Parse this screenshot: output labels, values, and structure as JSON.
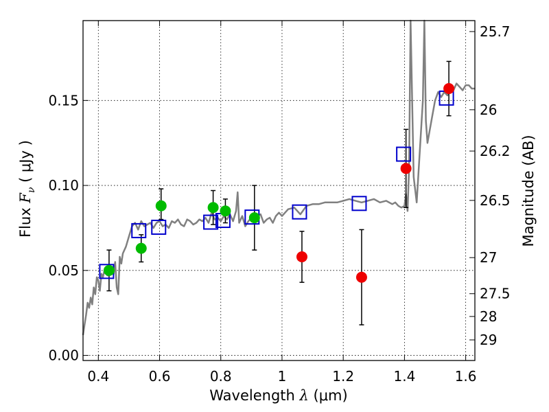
{
  "chart_data": {
    "type": "scatter",
    "xlabel_text": "Wavelength  ",
    "xlabel_symbol": "λ",
    "xlabel_unit": " (μm)",
    "ylabel_text": "Flux  ",
    "ylabel_symbol": "F",
    "ylabel_subscript": "ν",
    "ylabel_unit": "  ( μJy )",
    "y2label": "Magnitude (AB)",
    "xlim": [
      0.35,
      1.63
    ],
    "ylim": [
      -0.003,
      0.197
    ],
    "grid": true,
    "x_ticks": [
      0.4,
      0.6,
      0.8,
      1.0,
      1.2,
      1.4,
      1.6
    ],
    "x_tick_labels": [
      "0.4",
      "0.6",
      "0.8",
      "1",
      "1.2",
      "1.4",
      "1.6"
    ],
    "y_ticks": [
      0.0,
      0.05,
      0.1,
      0.15
    ],
    "y_tick_labels": [
      "0.00",
      "0.05",
      "0.10",
      "0.15"
    ],
    "y2_ticks": [
      {
        "mag": 25.7,
        "label": "25.7"
      },
      {
        "mag": 26.0,
        "label": "26"
      },
      {
        "mag": 26.2,
        "label": "26.2"
      },
      {
        "mag": 26.5,
        "label": "26.5"
      },
      {
        "mag": 27.0,
        "label": "27"
      },
      {
        "mag": 27.5,
        "label": "27.5"
      },
      {
        "mag": 28.0,
        "label": "28"
      },
      {
        "mag": 29.0,
        "label": "29"
      }
    ],
    "model_spectrum": {
      "name": "SED model",
      "color": "#808080",
      "x": [
        0.35,
        0.355,
        0.36,
        0.365,
        0.37,
        0.375,
        0.38,
        0.385,
        0.39,
        0.395,
        0.4,
        0.405,
        0.41,
        0.415,
        0.42,
        0.425,
        0.43,
        0.435,
        0.44,
        0.445,
        0.45,
        0.455,
        0.46,
        0.465,
        0.47,
        0.475,
        0.48,
        0.49,
        0.5,
        0.51,
        0.52,
        0.53,
        0.54,
        0.55,
        0.56,
        0.57,
        0.58,
        0.59,
        0.6,
        0.61,
        0.62,
        0.63,
        0.64,
        0.65,
        0.66,
        0.67,
        0.68,
        0.69,
        0.7,
        0.71,
        0.72,
        0.73,
        0.74,
        0.75,
        0.76,
        0.77,
        0.78,
        0.79,
        0.8,
        0.81,
        0.82,
        0.83,
        0.84,
        0.85,
        0.855,
        0.86,
        0.865,
        0.87,
        0.88,
        0.89,
        0.9,
        0.91,
        0.92,
        0.93,
        0.94,
        0.95,
        0.96,
        0.97,
        0.98,
        0.99,
        1.0,
        1.02,
        1.04,
        1.06,
        1.08,
        1.1,
        1.12,
        1.14,
        1.16,
        1.18,
        1.2,
        1.22,
        1.24,
        1.26,
        1.28,
        1.3,
        1.32,
        1.34,
        1.36,
        1.37,
        1.38,
        1.39,
        1.4,
        1.405,
        1.41,
        1.415,
        1.42,
        1.43,
        1.44,
        1.45,
        1.46,
        1.465,
        1.47,
        1.475,
        1.48,
        1.49,
        1.5,
        1.51,
        1.52,
        1.53,
        1.54,
        1.55,
        1.56,
        1.57,
        1.58,
        1.59,
        1.6,
        1.61,
        1.62,
        1.63
      ],
      "y": [
        0.012,
        0.018,
        0.024,
        0.031,
        0.028,
        0.034,
        0.03,
        0.04,
        0.036,
        0.046,
        0.044,
        0.038,
        0.048,
        0.046,
        0.05,
        0.048,
        0.047,
        0.049,
        0.052,
        0.05,
        0.048,
        0.055,
        0.04,
        0.036,
        0.058,
        0.054,
        0.06,
        0.064,
        0.07,
        0.076,
        0.078,
        0.074,
        0.079,
        0.076,
        0.077,
        0.078,
        0.075,
        0.078,
        0.079,
        0.076,
        0.077,
        0.075,
        0.079,
        0.078,
        0.08,
        0.077,
        0.076,
        0.08,
        0.079,
        0.077,
        0.078,
        0.08,
        0.079,
        0.081,
        0.078,
        0.084,
        0.08,
        0.081,
        0.079,
        0.082,
        0.08,
        0.083,
        0.079,
        0.085,
        0.096,
        0.078,
        0.08,
        0.082,
        0.076,
        0.079,
        0.081,
        0.079,
        0.082,
        0.083,
        0.078,
        0.08,
        0.081,
        0.078,
        0.082,
        0.084,
        0.082,
        0.086,
        0.087,
        0.083,
        0.088,
        0.089,
        0.089,
        0.09,
        0.09,
        0.09,
        0.091,
        0.092,
        0.091,
        0.09,
        0.091,
        0.092,
        0.09,
        0.091,
        0.089,
        0.09,
        0.088,
        0.087,
        0.088,
        0.095,
        0.085,
        0.11,
        0.2,
        0.105,
        0.09,
        0.12,
        0.15,
        0.197,
        0.138,
        0.125,
        0.13,
        0.14,
        0.15,
        0.155,
        0.152,
        0.155,
        0.153,
        0.158,
        0.156,
        0.16,
        0.158,
        0.156,
        0.159,
        0.159,
        0.157,
        0.157
      ]
    },
    "series": [
      {
        "name": "green points",
        "color": "#00bb00",
        "marker": "circle",
        "x": [
          0.435,
          0.54,
          0.605,
          0.775,
          0.815,
          0.91
        ],
        "y": [
          0.05,
          0.063,
          0.088,
          0.087,
          0.085,
          0.081
        ],
        "yerr_low": [
          0.012,
          0.008,
          0.008,
          0.01,
          0.007,
          0.019
        ],
        "yerr_high": [
          0.012,
          0.008,
          0.01,
          0.01,
          0.007,
          0.019
        ]
      },
      {
        "name": "red points",
        "color": "#ee0000",
        "marker": "circle",
        "x": [
          1.065,
          1.26,
          1.405,
          1.545
        ],
        "y": [
          0.058,
          0.046,
          0.11,
          0.157
        ],
        "yerr_low": [
          0.015,
          0.028,
          0.023,
          0.016
        ],
        "yerr_high": [
          0.015,
          0.028,
          0.023,
          0.016
        ]
      },
      {
        "name": "model photometry",
        "color": "#0000cc",
        "marker": "open-square",
        "x": [
          0.435,
          0.54,
          0.605,
          0.775,
          0.815,
          0.91,
          1.065,
          1.26,
          1.405,
          1.545
        ],
        "y": [
          0.049,
          0.073,
          0.075,
          0.078,
          0.079,
          0.081,
          0.084,
          0.089,
          0.118,
          0.151
        ]
      }
    ]
  }
}
